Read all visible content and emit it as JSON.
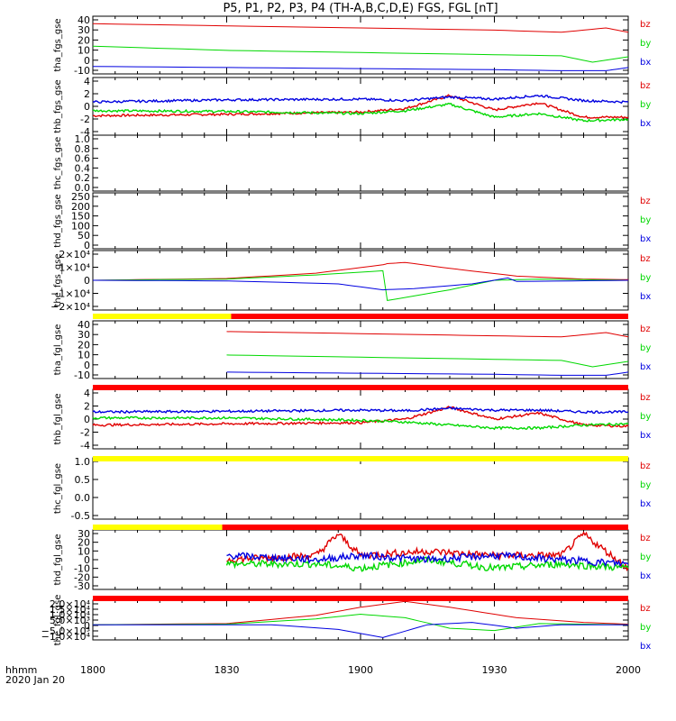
{
  "title": "P5, P1, P2, P3, P4 (TH-A,B,C,D,E) FGS, FGL [nT]",
  "footer": {
    "x_label": "hhmm",
    "date": "2020 Jan 20",
    "ticks": [
      "1800",
      "1830",
      "1900",
      "1930",
      "2000"
    ]
  },
  "colors": {
    "bz": "#e00000",
    "by": "#00d800",
    "bx": "#0000e0",
    "flag_yellow": "#ffff00",
    "flag_red": "#ff0000"
  },
  "chart_data": [
    {
      "type": "line",
      "ylabel": "tha_fgs_gse",
      "ylim": [
        -12,
        42
      ],
      "yticks": [
        "40",
        "30",
        "20",
        "10",
        "0",
        "-10"
      ],
      "x_range": [
        "18:00",
        "20:00"
      ],
      "legend": [
        "bz",
        "by",
        "bx"
      ],
      "series": [
        {
          "name": "bz",
          "x": [
            "18:00",
            "18:30",
            "19:00",
            "19:30",
            "19:45",
            "19:55",
            "20:00"
          ],
          "values": [
            35,
            33,
            31,
            29,
            27,
            31,
            27
          ]
        },
        {
          "name": "by",
          "x": [
            "18:00",
            "18:30",
            "19:00",
            "19:30",
            "19:45",
            "19:52",
            "20:00"
          ],
          "values": [
            14,
            10,
            8,
            6,
            5,
            -1,
            4
          ]
        },
        {
          "name": "bx",
          "x": [
            "18:00",
            "18:30",
            "19:00",
            "19:30",
            "19:45",
            "19:55",
            "20:00"
          ],
          "values": [
            -5,
            -6,
            -7,
            -8,
            -9,
            -9,
            -6
          ]
        }
      ]
    },
    {
      "type": "line",
      "ylabel": "thb_fgs_gse",
      "ylim": [
        -4,
        4
      ],
      "yticks": [
        "4",
        "2",
        "0",
        "-2",
        "-4"
      ],
      "x_range": [
        "18:00",
        "20:00"
      ],
      "legend": [
        "bz",
        "by",
        "bx"
      ],
      "series": [
        {
          "name": "bz",
          "x": [
            "18:00",
            "18:30",
            "19:00",
            "19:10",
            "19:20",
            "19:30",
            "19:40",
            "19:50",
            "20:00"
          ],
          "values": [
            -1.3,
            -1.1,
            -0.8,
            -0.3,
            1.5,
            -0.5,
            0.5,
            -1.5,
            -1.5
          ]
        },
        {
          "name": "by",
          "x": [
            "18:00",
            "18:30",
            "19:00",
            "19:10",
            "19:20",
            "19:30",
            "19:40",
            "19:50",
            "20:00"
          ],
          "values": [
            -0.6,
            -0.7,
            -1.0,
            -0.6,
            0.3,
            -1.5,
            -1.0,
            -2.0,
            -1.8
          ]
        },
        {
          "name": "bx",
          "x": [
            "18:00",
            "18:30",
            "19:00",
            "19:10",
            "19:20",
            "19:30",
            "19:40",
            "19:50",
            "20:00"
          ],
          "values": [
            0.6,
            0.9,
            1.0,
            0.8,
            1.3,
            1.0,
            1.5,
            0.8,
            0.6
          ]
        }
      ]
    },
    {
      "type": "line",
      "ylabel": "thc_fgs_gse",
      "ylim": [
        0,
        1.0
      ],
      "yticks": [
        "1.0",
        "0.8",
        "0.6",
        "0.4",
        "0.2",
        "0.0"
      ],
      "legend": [],
      "series": []
    },
    {
      "type": "line",
      "ylabel": "thd_fgs_gse",
      "ylim": [
        0,
        250
      ],
      "yticks": [
        "250",
        "200",
        "150",
        "100",
        "50",
        "0"
      ],
      "legend": [
        "bz",
        "by",
        "bx"
      ],
      "series": []
    },
    {
      "type": "line",
      "ylabel": "the_fgs_gse",
      "ylim": [
        -25000,
        25000
      ],
      "yticks": [
        "2×10⁴",
        "1×10⁴",
        "0",
        "−1×10⁴",
        "−2×10⁴"
      ],
      "legend": [
        "bz",
        "by",
        "bx"
      ],
      "series": [
        {
          "name": "bz",
          "x": [
            "18:00",
            "18:30",
            "18:50",
            "19:05",
            "19:06",
            "19:10",
            "19:20",
            "19:35",
            "19:50",
            "20:00"
          ],
          "values": [
            0,
            1500,
            6000,
            13000,
            14000,
            15000,
            10000,
            3500,
            1000,
            500
          ]
        },
        {
          "name": "by",
          "x": [
            "18:00",
            "18:30",
            "18:50",
            "19:05",
            "19:06",
            "19:20",
            "19:30",
            "19:40",
            "20:00"
          ],
          "values": [
            0,
            1000,
            4500,
            8000,
            -17000,
            -8000,
            0,
            1000,
            0
          ]
        },
        {
          "name": "bx",
          "x": [
            "18:00",
            "18:30",
            "18:55",
            "19:05",
            "19:12",
            "19:25",
            "19:33",
            "19:35",
            "20:00"
          ],
          "values": [
            0,
            -500,
            -3000,
            -8000,
            -7000,
            -3000,
            2000,
            -1000,
            0
          ]
        }
      ]
    },
    {
      "type": "line",
      "ylabel": "tha_fgl_gse",
      "ylim": [
        -12,
        42
      ],
      "yticks": [
        "40",
        "30",
        "20",
        "10",
        "0",
        "-10"
      ],
      "legend": [
        "bz",
        "by",
        "bx"
      ],
      "series": [
        {
          "name": "bz",
          "x": [
            "18:30",
            "19:00",
            "19:30",
            "19:45",
            "19:55",
            "20:00"
          ],
          "values": [
            32,
            30,
            28,
            27,
            31,
            27
          ]
        },
        {
          "name": "by",
          "x": [
            "18:30",
            "19:00",
            "19:30",
            "19:45",
            "19:52",
            "20:00"
          ],
          "values": [
            10,
            8,
            6,
            5,
            -1,
            4
          ]
        },
        {
          "name": "bx",
          "x": [
            "18:30",
            "19:00",
            "19:30",
            "19:45",
            "19:55",
            "20:00"
          ],
          "values": [
            -6,
            -7,
            -8,
            -9,
            -9,
            -6
          ]
        }
      ]
    },
    {
      "type": "line",
      "ylabel": "thb_fgl_gse",
      "ylim": [
        -5,
        5
      ],
      "yticks": [
        "4",
        "2",
        "0",
        "-2",
        "-4"
      ],
      "legend": [
        "bz",
        "by",
        "bx"
      ],
      "series": [
        {
          "name": "bz",
          "x": [
            "18:00",
            "18:30",
            "19:00",
            "19:10",
            "19:20",
            "19:30",
            "19:40",
            "19:50",
            "20:00"
          ],
          "values": [
            -1.0,
            -0.8,
            -0.6,
            0.0,
            2.0,
            0.0,
            1.0,
            -1.0,
            -1.2
          ]
        },
        {
          "name": "by",
          "x": [
            "18:00",
            "18:30",
            "19:00",
            "19:10",
            "19:20",
            "19:30",
            "19:40",
            "19:50",
            "20:00"
          ],
          "values": [
            0.2,
            0.2,
            -0.2,
            -0.5,
            -1.0,
            -1.5,
            -1.5,
            -1.0,
            -0.8
          ]
        },
        {
          "name": "bx",
          "x": [
            "18:00",
            "18:30",
            "19:00",
            "19:10",
            "19:20",
            "19:30",
            "19:40",
            "19:50",
            "20:00"
          ],
          "values": [
            1.2,
            1.3,
            1.5,
            1.4,
            1.8,
            1.5,
            1.5,
            1.2,
            1.2
          ]
        }
      ]
    },
    {
      "type": "line",
      "ylabel": "thc_fgl_gse",
      "ylim": [
        -0.7,
        1.2
      ],
      "yticks": [
        "1.0",
        "0.5",
        "0.0",
        "-0.5"
      ],
      "legend": [
        "bz",
        "by",
        "bx"
      ],
      "series": []
    },
    {
      "type": "line",
      "ylabel": "thd_fgl_gse",
      "ylim": [
        -35,
        35
      ],
      "yticks": [
        "30",
        "20",
        "10",
        "0",
        "-10",
        "-20",
        "-30"
      ],
      "legend": [
        "bz",
        "by",
        "bx"
      ],
      "series": [
        {
          "name": "bz",
          "x": [
            "18:30",
            "18:50",
            "18:55",
            "19:00",
            "19:15",
            "19:30",
            "19:45",
            "19:50",
            "20:00"
          ],
          "values": [
            0,
            5,
            30,
            5,
            10,
            5,
            5,
            30,
            -10
          ]
        },
        {
          "name": "by",
          "x": [
            "18:30",
            "18:50",
            "19:00",
            "19:15",
            "19:30",
            "19:45",
            "20:00"
          ],
          "values": [
            -5,
            -5,
            -10,
            0,
            -10,
            -5,
            -10
          ]
        },
        {
          "name": "bx",
          "x": [
            "18:30",
            "18:50",
            "19:00",
            "19:15",
            "19:30",
            "19:45",
            "20:00"
          ],
          "values": [
            5,
            0,
            5,
            0,
            5,
            0,
            -5
          ]
        }
      ]
    },
    {
      "type": "line",
      "ylabel": "the_fgl_gse",
      "ylim": [
        -13000,
        21000
      ],
      "yticks": [
        "2.0×10⁴",
        "1.5×10⁴",
        "1.0×10⁴",
        "5.0×10³",
        "0",
        "−5.0×10³",
        "−1.0×10⁴"
      ],
      "legend": [
        "bz",
        "by",
        "bx"
      ],
      "series": [
        {
          "name": "bz",
          "x": [
            "18:00",
            "18:30",
            "18:50",
            "19:00",
            "19:10",
            "19:20",
            "19:35",
            "19:50",
            "20:00"
          ],
          "values": [
            0,
            1000,
            8000,
            15000,
            20000,
            15000,
            6000,
            2000,
            500
          ]
        },
        {
          "name": "by",
          "x": [
            "18:00",
            "18:30",
            "18:50",
            "19:00",
            "19:10",
            "19:20",
            "19:30",
            "19:40",
            "20:00"
          ],
          "values": [
            0,
            500,
            5000,
            9000,
            6000,
            -3000,
            -5000,
            1000,
            0
          ]
        },
        {
          "name": "bx",
          "x": [
            "18:00",
            "18:40",
            "18:55",
            "19:05",
            "19:15",
            "19:25",
            "19:35",
            "19:45",
            "20:00"
          ],
          "values": [
            0,
            0,
            -4000,
            -11000,
            0,
            2000,
            -3000,
            0,
            0
          ]
        }
      ]
    }
  ],
  "flag_bars": [
    {
      "after_panel": 4,
      "segments": [
        {
          "from": "18:00",
          "to": "18:31",
          "color": "yellow"
        },
        {
          "from": "18:31",
          "to": "20:00",
          "color": "red"
        }
      ]
    },
    {
      "after_panel": 5,
      "segments": [
        {
          "from": "18:00",
          "to": "20:00",
          "color": "red"
        }
      ]
    },
    {
      "after_panel": 6,
      "segments": [
        {
          "from": "18:00",
          "to": "20:00",
          "color": "yellow"
        }
      ]
    },
    {
      "after_panel": 7,
      "segments": [
        {
          "from": "18:00",
          "to": "18:29",
          "color": "yellow"
        },
        {
          "from": "18:29",
          "to": "20:00",
          "color": "red"
        }
      ]
    },
    {
      "after_panel": 8,
      "segments": [
        {
          "from": "18:00",
          "to": "20:00",
          "color": "red"
        }
      ]
    }
  ]
}
